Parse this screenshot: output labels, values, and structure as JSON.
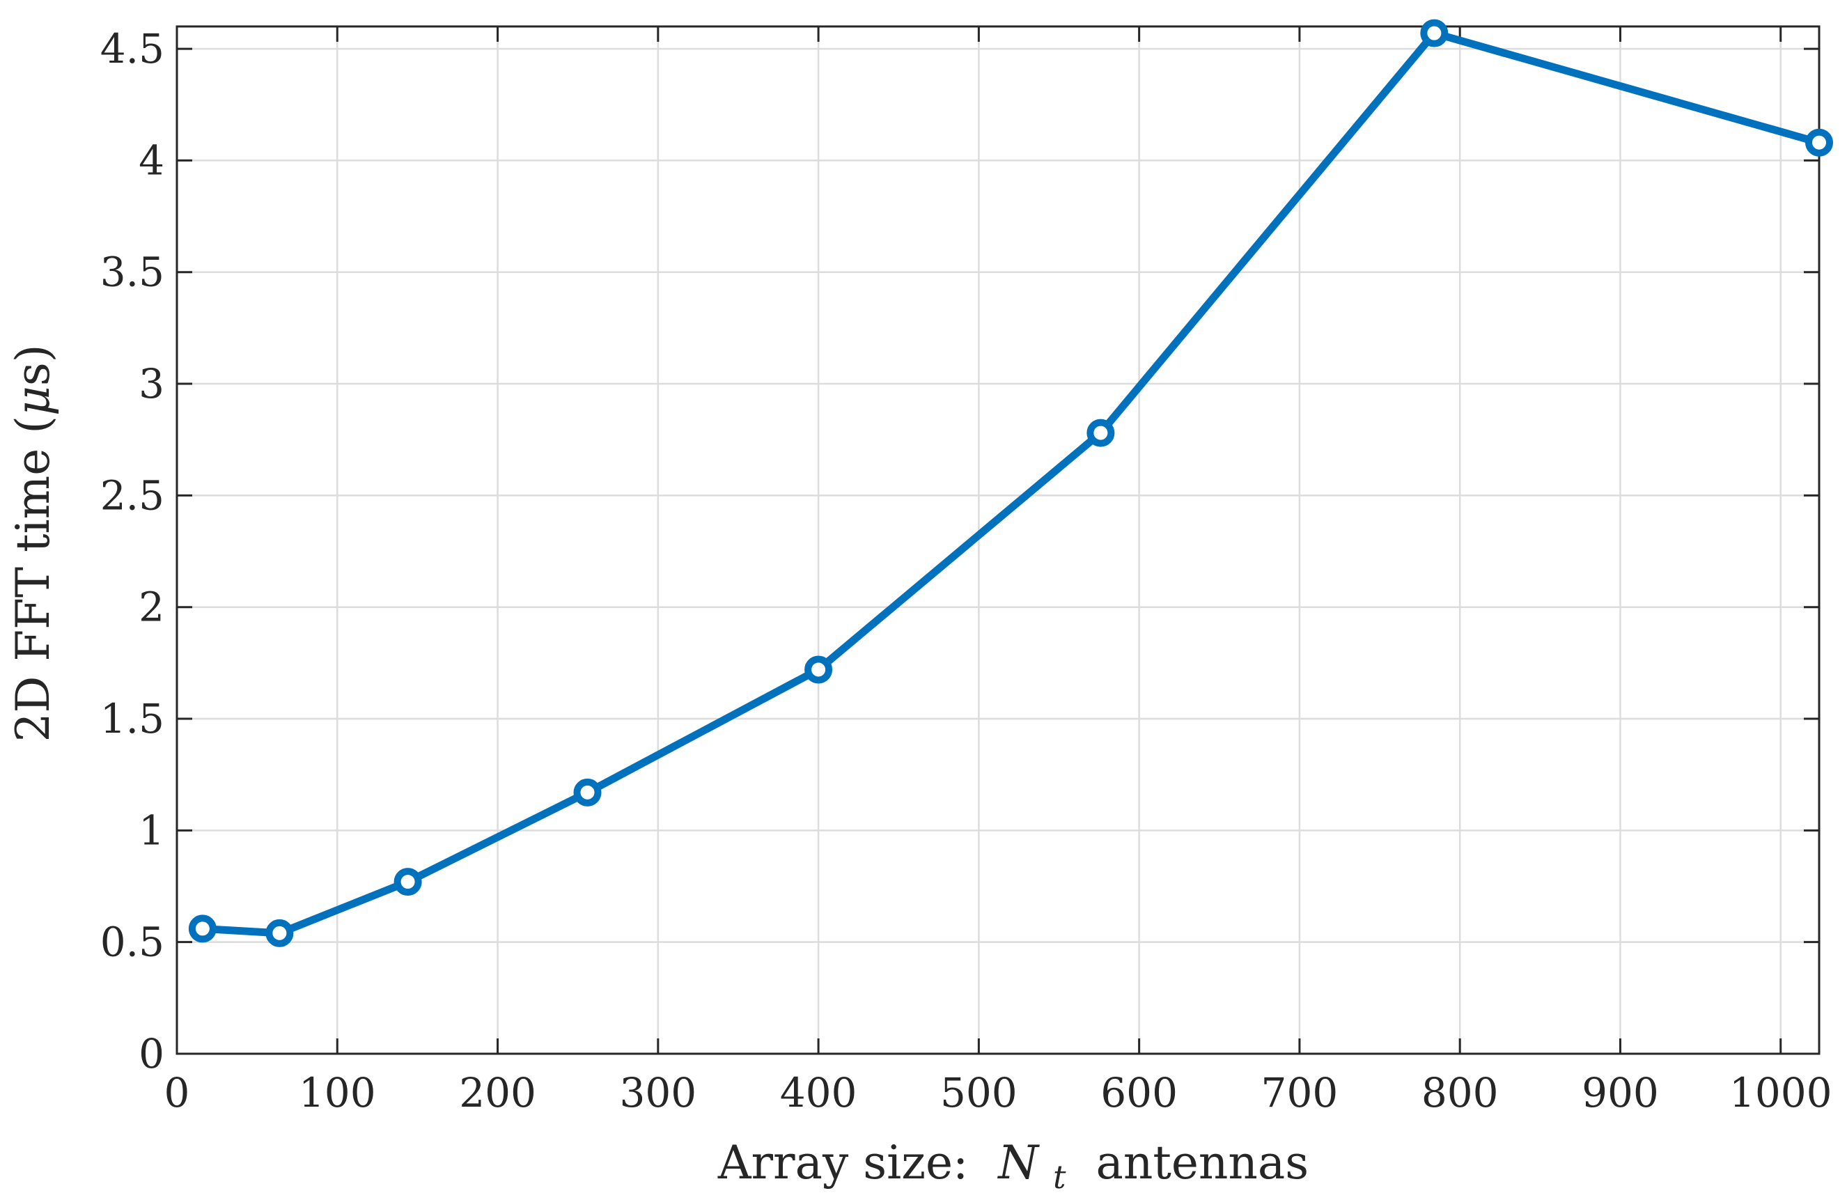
{
  "chart_data": {
    "type": "line",
    "xlabel": "Array size:",
    "xlabel_math": "N",
    "xlabel_sub": "t",
    "xlabel_suffix": "antennas",
    "ylabel": "2D FFT time (",
    "ylabel_math": "μ",
    "ylabel_suffix": "s)",
    "xlim": [
      0,
      1024
    ],
    "ylim": [
      0,
      4.6
    ],
    "xticks": [
      0,
      100,
      200,
      300,
      400,
      500,
      600,
      700,
      800,
      900,
      1000
    ],
    "yticks": [
      0,
      0.5,
      1,
      1.5,
      2,
      2.5,
      3,
      3.5,
      4,
      4.5
    ],
    "xtick_labels": [
      "0",
      "100",
      "200",
      "300",
      "400",
      "500",
      "600",
      "700",
      "800",
      "900",
      "1000"
    ],
    "ytick_labels": [
      "0",
      "0.5",
      "1",
      "1.5",
      "2",
      "2.5",
      "3",
      "3.5",
      "4",
      "4.5"
    ],
    "grid": true,
    "legend": "none",
    "series": [
      {
        "color": "#0072BD",
        "marker": "circle",
        "x": [
          16,
          64,
          144,
          256,
          400,
          576,
          784,
          1024
        ],
        "y": [
          0.56,
          0.54,
          0.77,
          1.17,
          1.72,
          2.78,
          4.57,
          4.08
        ]
      }
    ]
  }
}
